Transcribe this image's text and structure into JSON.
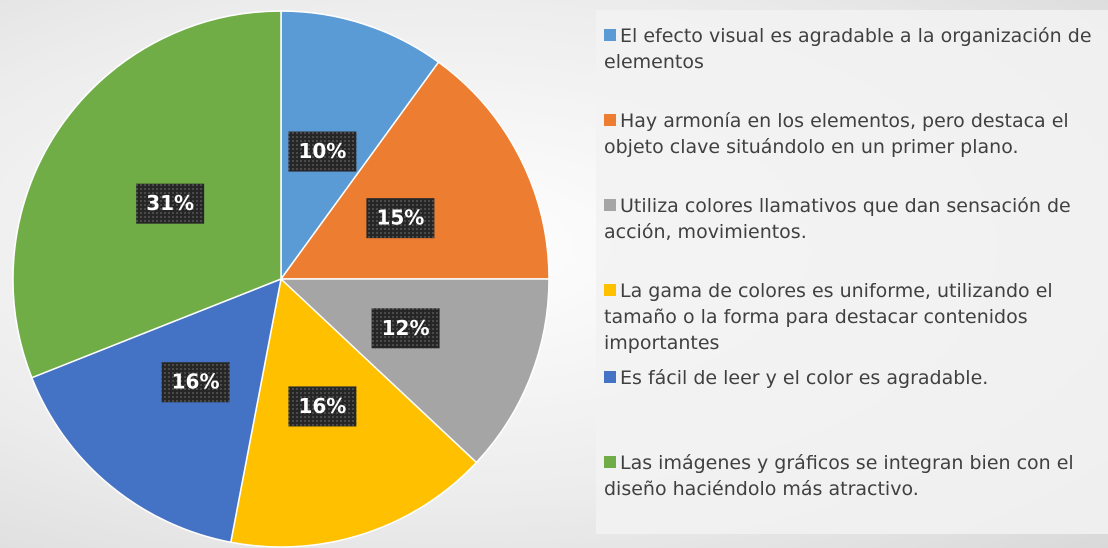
{
  "chart_data": {
    "type": "pie",
    "categories": [
      "El efecto visual es agradable a la organización de elementos",
      "Hay armonía en los elementos, pero destaca el objeto clave situándolo en un primer plano.",
      "Utiliza colores llamativos que dan sensación de acción, movimientos.",
      "La gama de colores es uniforme, utilizando el tamaño o la forma para destacar contenidos importantes",
      "Es fácil de leer y el color es agradable.",
      "Las imágenes y gráficos se integran bien con el diseño haciéndolo más atractivo."
    ],
    "values": [
      10,
      15,
      12,
      16,
      16,
      31
    ],
    "value_labels": [
      "10%",
      "15%",
      "12%",
      "16%",
      "16%",
      "31%"
    ],
    "colors": [
      "#5b9bd5",
      "#ed7d31",
      "#a5a5a5",
      "#ffc000",
      "#4472c4",
      "#70ad47"
    ],
    "legend": "right"
  }
}
